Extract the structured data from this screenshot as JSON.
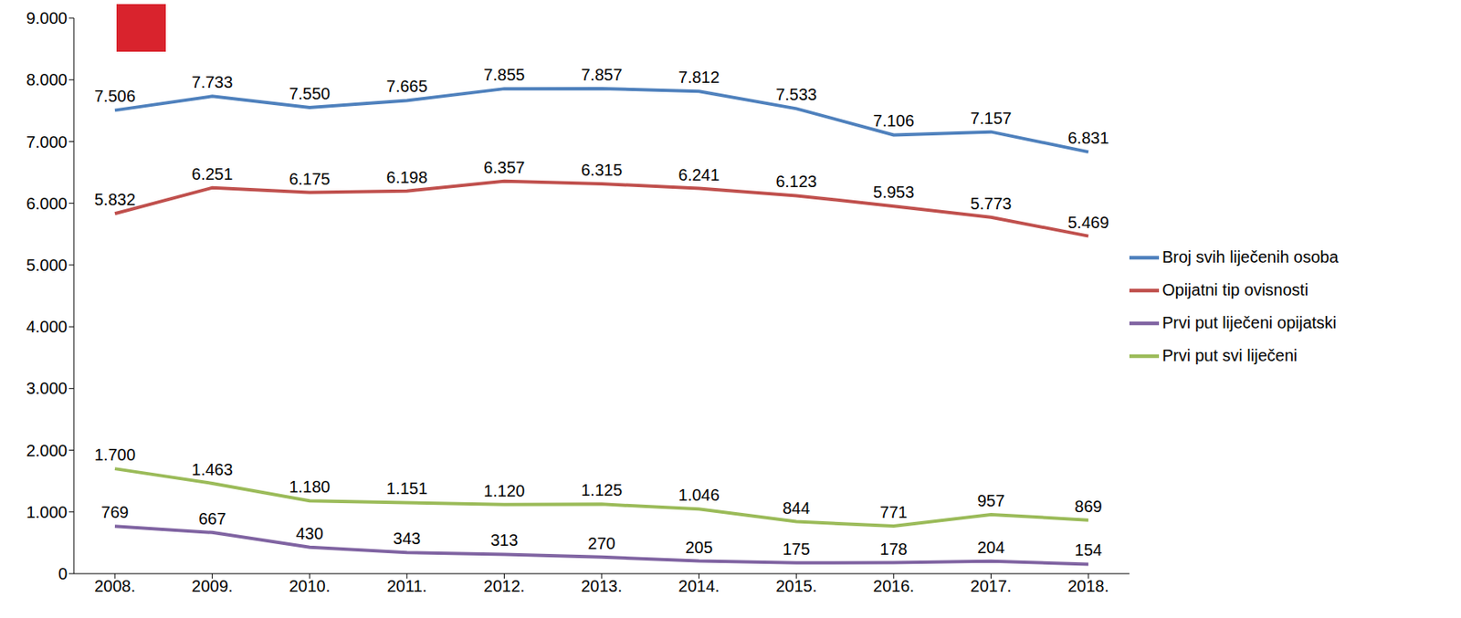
{
  "chart_data": {
    "type": "line",
    "categories": [
      "2008.",
      "2009.",
      "2010.",
      "2011.",
      "2012.",
      "2013.",
      "2014.",
      "2015.",
      "2016.",
      "2017.",
      "2018."
    ],
    "series": [
      {
        "name": "Broj svih liječenih osoba",
        "color": "#4f81bd",
        "values": [
          7506,
          7733,
          7550,
          7665,
          7855,
          7857,
          7812,
          7533,
          7106,
          7157,
          6831
        ],
        "value_labels": [
          "7.506",
          "7.733",
          "7.550",
          "7.665",
          "7.855",
          "7.857",
          "7.812",
          "7.533",
          "7.106",
          "7.157",
          "6.831"
        ]
      },
      {
        "name": "Opijatni tip ovisnosti",
        "color": "#c0504d",
        "values": [
          5832,
          6251,
          6175,
          6198,
          6357,
          6315,
          6241,
          6123,
          5953,
          5773,
          5469
        ],
        "value_labels": [
          "5.832",
          "6.251",
          "6.175",
          "6.198",
          "6.357",
          "6.315",
          "6.241",
          "6.123",
          "5.953",
          "5.773",
          "5.469"
        ]
      },
      {
        "name": "Prvi put svi liječeni",
        "color": "#9bbb59",
        "values": [
          1700,
          1463,
          1180,
          1151,
          1120,
          1125,
          1046,
          844,
          771,
          957,
          869
        ],
        "value_labels": [
          "1.700",
          "1.463",
          "1.180",
          "1.151",
          "1.120",
          "1.125",
          "1.046",
          "844",
          "771",
          "957",
          "869"
        ]
      },
      {
        "name": "Prvi put liječeni opijatski",
        "color": "#8064a2",
        "values": [
          769,
          667,
          430,
          343,
          313,
          270,
          205,
          175,
          178,
          204,
          154
        ],
        "value_labels": [
          "769",
          "667",
          "430",
          "343",
          "313",
          "270",
          "205",
          "175",
          "178",
          "204",
          "154"
        ]
      }
    ],
    "ylim": [
      0,
      9000
    ],
    "yticks": [
      0,
      {
        "value": 1000,
        "label": "1.000"
      },
      {
        "value": 2000,
        "label": "2.000"
      },
      {
        "value": 3000,
        "label": "3.000"
      },
      {
        "value": 4000,
        "label": "4.000"
      },
      {
        "value": 5000,
        "label": "5.000"
      },
      {
        "value": 6000,
        "label": "6.000"
      },
      {
        "value": 7000,
        "label": "7.000"
      },
      {
        "value": 8000,
        "label": "8.000"
      },
      {
        "value": 9000,
        "label": "9.000"
      }
    ],
    "grid": false,
    "legend": "right",
    "data_labels": true
  }
}
